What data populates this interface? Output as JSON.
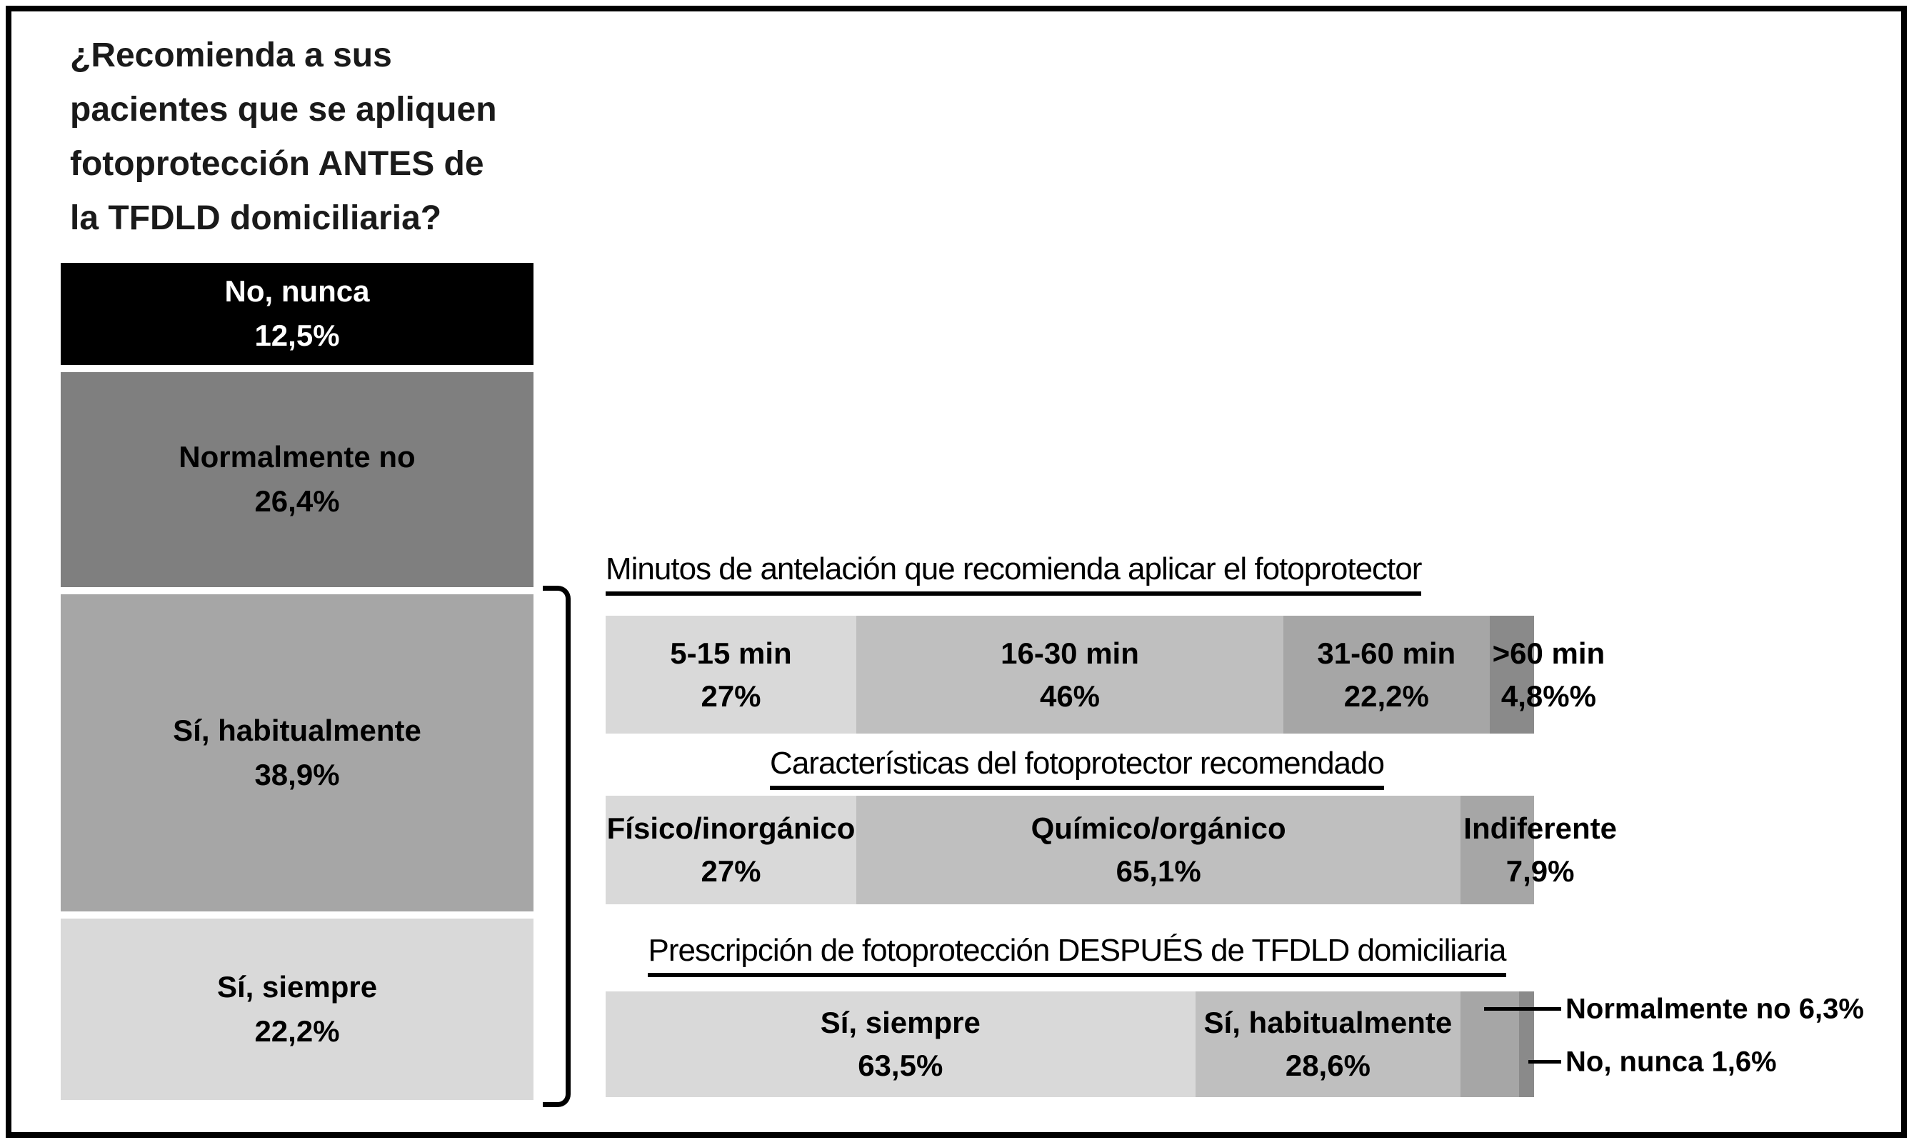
{
  "title": "¿Recomienda a sus\npacientes que se apliquen\nfotoprotección ANTES de\nla TFDLD domiciliaria?",
  "palette": {
    "black": "#000000",
    "dark_gray": "#7f7f7f",
    "darker_gray": "#8a8a8a",
    "medium_dark_gray": "#a6a6a6",
    "medium_gray": "#bfbfbf",
    "light_gray": "#d9d9d9"
  },
  "chart_data": [
    {
      "type": "bar",
      "orientation": "vertical",
      "stacked": true,
      "title": "¿Recomienda a sus pacientes que se apliquen fotoprotección ANTES de la TFDLD domiciliaria?",
      "categories": [
        "No, nunca",
        "Normalmente no",
        "Sí, habitualmente",
        "Sí, siempre"
      ],
      "values": [
        12.5,
        26.4,
        38.9,
        22.2
      ],
      "segments": [
        {
          "label": "No, nunca",
          "pct": "12,5%",
          "value": 12.5,
          "color": "#000000"
        },
        {
          "label": "Normalmente no",
          "pct": "26,4%",
          "value": 26.4,
          "color": "#7f7f7f"
        },
        {
          "label": "Sí, habitualmente",
          "pct": "38,9%",
          "value": 38.9,
          "color": "#a6a6a6"
        },
        {
          "label": "Sí, siempre",
          "pct": "22,2%",
          "value": 22.2,
          "color": "#d9d9d9"
        }
      ]
    },
    {
      "type": "bar",
      "orientation": "horizontal",
      "stacked": true,
      "title": "Minutos de antelación que recomienda aplicar el fotoprotector",
      "categories": [
        "5-15 min",
        "16-30 min",
        "31-60 min",
        ">60 min"
      ],
      "values": [
        27,
        46,
        22.2,
        4.8
      ],
      "segments": [
        {
          "label": "5-15 min",
          "pct": "27%",
          "value": 27,
          "color": "#d9d9d9"
        },
        {
          "label": "16-30 min",
          "pct": "46%",
          "value": 46,
          "color": "#bfbfbf"
        },
        {
          "label": "31-60 min",
          "pct": "22,2%",
          "value": 22.2,
          "color": "#a6a6a6"
        },
        {
          "label": ">60 min",
          "pct": "4,8%%",
          "value": 4.8,
          "color": "#8a8a8a"
        }
      ]
    },
    {
      "type": "bar",
      "orientation": "horizontal",
      "stacked": true,
      "title": "Características del fotoprotector recomendado",
      "categories": [
        "Físico/inorgánico",
        "Químico/orgánico",
        "Indiferente"
      ],
      "values": [
        27,
        65.1,
        7.9
      ],
      "segments": [
        {
          "label": "Físico/inorgánico",
          "pct": "27%",
          "value": 27,
          "color": "#d9d9d9"
        },
        {
          "label": "Químico/orgánico",
          "pct": "65,1%",
          "value": 65.1,
          "color": "#bfbfbf"
        },
        {
          "label": "Indiferente",
          "pct": "7,9%",
          "value": 7.9,
          "color": "#a6a6a6"
        }
      ]
    },
    {
      "type": "bar",
      "orientation": "horizontal",
      "stacked": true,
      "title": "Prescripción de fotoprotección DESPUÉS de TFDLD domiciliaria",
      "categories": [
        "Sí, siempre",
        "Sí, habitualmente",
        "Normalmente no",
        "No, nunca"
      ],
      "values": [
        63.5,
        28.6,
        6.3,
        1.6
      ],
      "segments": [
        {
          "label": "Sí, siempre",
          "pct": "63,5%",
          "value": 63.5,
          "color": "#d9d9d9"
        },
        {
          "label": "Sí, habitualmente",
          "pct": "28,6%",
          "value": 28.6,
          "color": "#bfbfbf"
        },
        {
          "label": "Normalmente no",
          "pct": "6,3%",
          "value": 6.3,
          "color": "#a6a6a6"
        },
        {
          "label": "No, nunca",
          "pct": "1,6%",
          "value": 1.6,
          "color": "#8a8a8a"
        }
      ],
      "callouts": [
        {
          "text": "Normalmente no 6,3%"
        },
        {
          "text": "No, nunca 1,6%"
        }
      ]
    }
  ]
}
